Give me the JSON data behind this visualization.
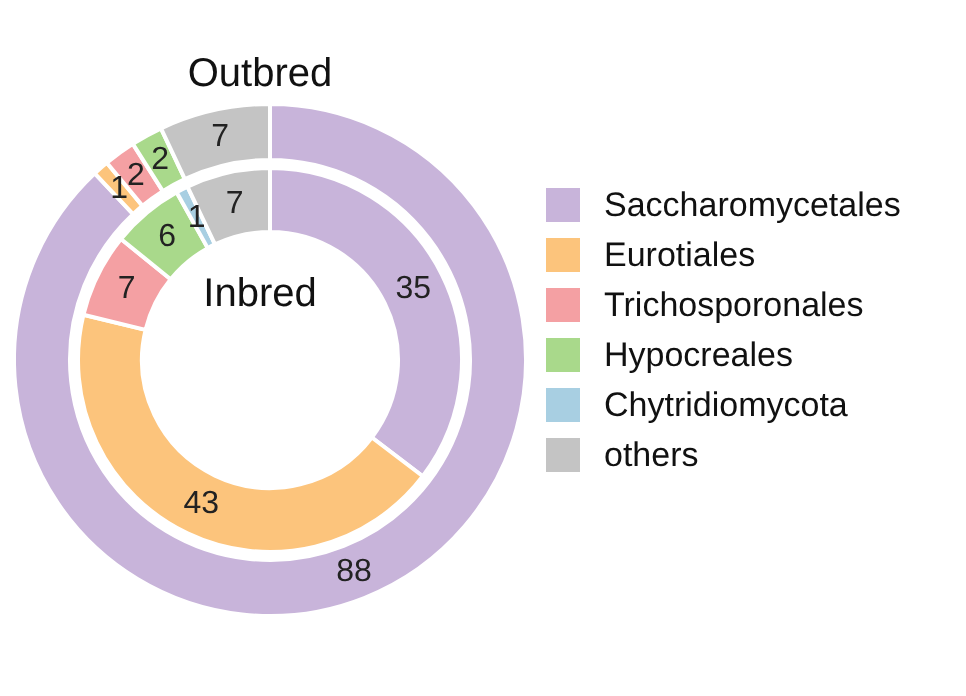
{
  "chart_data": {
    "type": "donut",
    "categories": [
      "Saccharomycetales",
      "Eurotiales",
      "Trichosporonales",
      "Hypocreales",
      "Chytridiomycota",
      "others"
    ],
    "colors": [
      "#c8b4da",
      "#fcc47c",
      "#f4a0a3",
      "#a9d98b",
      "#a8cfe2",
      "#c4c4c4"
    ],
    "series": [
      {
        "name": "Outbred",
        "values": [
          88,
          1,
          2,
          2,
          null,
          7
        ]
      },
      {
        "name": "Inbred",
        "values": [
          35,
          43,
          7,
          6,
          1,
          7
        ]
      }
    ],
    "data_labels": true,
    "legend": "right"
  }
}
